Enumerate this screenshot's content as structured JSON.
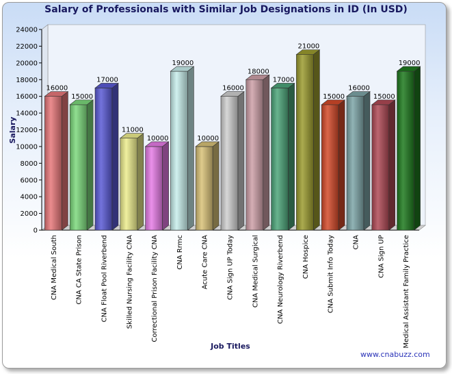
{
  "chart_data": {
    "type": "bar",
    "title": "Salary of Professionals with Similar Job Designations in ID (In USD)",
    "xlabel": "Job Titles",
    "ylabel": "Salary",
    "ylim": [
      0,
      24000
    ],
    "yticks": [
      0,
      2000,
      4000,
      6000,
      8000,
      10000,
      12000,
      14000,
      16000,
      18000,
      20000,
      22000,
      24000
    ],
    "ytick_labels": [
      "0",
      "2000",
      "4000",
      "6000",
      "8000",
      "10000",
      "12000",
      "14000",
      "16000",
      "18000",
      "20000",
      "22000",
      "24000"
    ],
    "grid": false,
    "categories": [
      "CNA Medical South",
      "CNA CA State Prison",
      "CNA Float Pool Riverbend",
      "Skilled Nursing Facility CNA",
      "Correctional Prison Facility CNA",
      "CNA Rrmc",
      "Acute Care CNA",
      "CNA Sign UP Today",
      "CNA Medical Surgical",
      "CNA Neurology Riverbend",
      "CNA Hospice",
      "CNA Submit Info Today",
      "CNA",
      "CNA Sign UP",
      "Medical Assistant Family Practice"
    ],
    "values": [
      16000,
      15000,
      17000,
      11000,
      10000,
      19000,
      10000,
      16000,
      18000,
      17000,
      21000,
      15000,
      16000,
      15000,
      19000
    ],
    "value_labels": [
      "16000",
      "15000",
      "17000",
      "11000",
      "10000",
      "19000",
      "10000",
      "16000",
      "18000",
      "17000",
      "21000",
      "15000",
      "16000",
      "15000",
      "19000"
    ],
    "colors": [
      "#e8787a",
      "#7cd97c",
      "#5a5ad6",
      "#eded8e",
      "#e67ce6",
      "#c8eeec",
      "#d9c278",
      "#d0d0d0",
      "#cea0a8",
      "#4da57a",
      "#9c9c30",
      "#d44a2a",
      "#7ea6a8",
      "#b04a56",
      "#1e7a1e"
    ]
  },
  "watermark": "www.cnabuzz.com"
}
